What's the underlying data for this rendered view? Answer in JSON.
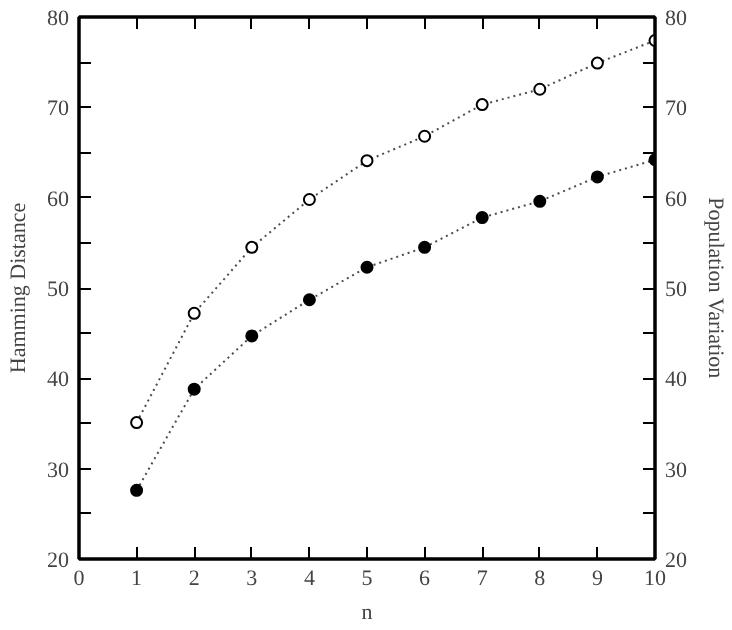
{
  "chart_data": {
    "type": "line",
    "xlabel": "n",
    "ylabel": "Hamming Distance",
    "y2label": "Population Variation",
    "x": [
      1,
      2,
      3,
      4,
      5,
      6,
      7,
      8,
      9,
      10
    ],
    "series": [
      {
        "color": "#000000",
        "values": [
          27.6,
          38.8,
          44.7,
          48.7,
          52.3,
          54.5,
          57.8,
          59.6,
          62.3,
          64.2
        ]
      },
      {
        "color": "#000000",
        "axis": "y2",
        "values": [
          35.1,
          47.2,
          54.5,
          59.8,
          64.1,
          66.8,
          70.3,
          72.0,
          74.9,
          77.4
        ]
      }
    ],
    "xlim": [
      0,
      10
    ],
    "xticks": [
      0,
      1,
      2,
      3,
      4,
      5,
      6,
      7,
      8,
      9,
      10
    ],
    "ylim": [
      20,
      80
    ],
    "yticks": [
      20,
      {
        "value": 25,
        "label": null
      },
      30,
      {
        "value": 35,
        "label": null
      },
      40,
      {
        "value": 45,
        "label": null
      },
      50,
      {
        "value": 55,
        "label": null
      },
      60,
      {
        "value": 65,
        "label": null
      },
      70,
      {
        "value": 75,
        "label": null
      },
      80
    ],
    "y2lim": [
      20,
      80
    ],
    "y2ticks": [
      20,
      {
        "value": 25,
        "label": null
      },
      30,
      {
        "value": 35,
        "label": null
      },
      40,
      {
        "value": 45,
        "label": null
      },
      50,
      {
        "value": 55,
        "label": null
      },
      60,
      {
        "value": 65,
        "label": null
      },
      70,
      {
        "value": 75,
        "label": null
      },
      80
    ],
    "marker": "circle",
    "line_style": "dotted",
    "grid": false
  }
}
